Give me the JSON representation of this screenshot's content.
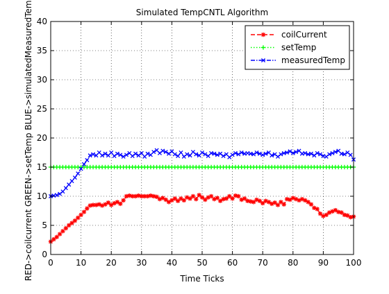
{
  "chart_data": {
    "type": "line",
    "title": "Simulated TempCNTL Algorithm",
    "xlabel": "Time Ticks",
    "ylabel": "RED->coilcurrent  GREEN->setTemp  BLUE->simulatedMeasuredTemp",
    "xlim": [
      0,
      100
    ],
    "ylim": [
      0,
      40
    ],
    "xticks": [
      0,
      10,
      20,
      30,
      40,
      50,
      60,
      70,
      80,
      90,
      100
    ],
    "yticks": [
      0,
      5,
      10,
      15,
      20,
      25,
      30,
      35,
      40
    ],
    "grid": true,
    "legend_position": "top-right",
    "x": [
      0,
      1,
      2,
      3,
      4,
      5,
      6,
      7,
      8,
      9,
      10,
      11,
      12,
      13,
      14,
      15,
      16,
      17,
      18,
      19,
      20,
      21,
      22,
      23,
      24,
      25,
      26,
      27,
      28,
      29,
      30,
      31,
      32,
      33,
      34,
      35,
      36,
      37,
      38,
      39,
      40,
      41,
      42,
      43,
      44,
      45,
      46,
      47,
      48,
      49,
      50,
      51,
      52,
      53,
      54,
      55,
      56,
      57,
      58,
      59,
      60,
      61,
      62,
      63,
      64,
      65,
      66,
      67,
      68,
      69,
      70,
      71,
      72,
      73,
      74,
      75,
      76,
      77,
      78,
      79,
      80,
      81,
      82,
      83,
      84,
      85,
      86,
      87,
      88,
      89,
      90,
      91,
      92,
      93,
      94,
      95,
      96,
      97,
      98,
      99,
      100
    ],
    "series": [
      {
        "name": "coilCurrent",
        "color": "#ff0000",
        "line_style": "dashed",
        "marker": "star",
        "values": [
          2.2,
          2.6,
          3.0,
          3.5,
          4.0,
          4.5,
          5.0,
          5.4,
          5.8,
          6.3,
          6.8,
          7.3,
          7.9,
          8.4,
          8.5,
          8.5,
          8.6,
          8.4,
          8.6,
          8.9,
          8.5,
          8.8,
          9.0,
          8.7,
          9.3,
          10.0,
          10.1,
          10.0,
          10.0,
          10.1,
          10.0,
          10.0,
          10.0,
          10.1,
          10.0,
          9.9,
          9.5,
          9.7,
          9.4,
          9.0,
          9.3,
          9.6,
          9.2,
          9.6,
          9.3,
          9.8,
          9.6,
          10.0,
          9.5,
          10.2,
          9.8,
          9.4,
          9.8,
          10.0,
          9.5,
          9.7,
          9.2,
          9.5,
          9.6,
          10.0,
          9.6,
          10.1,
          10.0,
          9.4,
          9.6,
          9.2,
          9.1,
          9.0,
          9.4,
          9.2,
          8.8,
          9.2,
          9.0,
          8.7,
          8.9,
          8.5,
          9.0,
          8.6,
          9.5,
          9.4,
          9.7,
          9.5,
          9.3,
          9.5,
          9.3,
          9.0,
          8.6,
          8.0,
          7.8,
          7.0,
          6.6,
          6.8,
          7.2,
          7.4,
          7.6,
          7.3,
          7.2,
          6.8,
          6.7,
          6.4,
          6.5
        ]
      },
      {
        "name": "setTemp",
        "color": "#00ff00",
        "line_style": "dotted",
        "marker": "plus",
        "values": [
          15,
          15,
          15,
          15,
          15,
          15,
          15,
          15,
          15,
          15,
          15,
          15,
          15,
          15,
          15,
          15,
          15,
          15,
          15,
          15,
          15,
          15,
          15,
          15,
          15,
          15,
          15,
          15,
          15,
          15,
          15,
          15,
          15,
          15,
          15,
          15,
          15,
          15,
          15,
          15,
          15,
          15,
          15,
          15,
          15,
          15,
          15,
          15,
          15,
          15,
          15,
          15,
          15,
          15,
          15,
          15,
          15,
          15,
          15,
          15,
          15,
          15,
          15,
          15,
          15,
          15,
          15,
          15,
          15,
          15,
          15,
          15,
          15,
          15,
          15,
          15,
          15,
          15,
          15,
          15,
          15,
          15,
          15,
          15,
          15,
          15,
          15,
          15,
          15,
          15,
          15,
          15,
          15,
          15,
          15,
          15,
          15,
          15,
          15,
          15,
          15
        ]
      },
      {
        "name": "measuredTemp",
        "color": "#0000ff",
        "line_style": "dashdot",
        "marker": "x",
        "values": [
          10.0,
          10.1,
          10.2,
          10.4,
          10.8,
          11.4,
          12.0,
          12.6,
          13.2,
          13.9,
          14.7,
          15.5,
          16.2,
          17.0,
          17.2,
          17.0,
          17.5,
          17.0,
          17.3,
          17.0,
          17.5,
          16.9,
          17.3,
          17.1,
          16.8,
          17.1,
          17.4,
          16.9,
          17.3,
          17.0,
          17.4,
          16.8,
          17.3,
          17.1,
          17.6,
          17.9,
          17.4,
          17.8,
          17.6,
          17.3,
          17.7,
          17.2,
          16.9,
          17.5,
          16.8,
          17.2,
          17.0,
          17.6,
          17.2,
          17.0,
          17.5,
          17.2,
          16.9,
          17.4,
          17.3,
          17.1,
          17.3,
          16.9,
          17.2,
          16.7,
          17.1,
          17.4,
          17.2,
          17.5,
          17.3,
          17.4,
          17.3,
          17.2,
          17.5,
          17.3,
          17.1,
          17.3,
          17.5,
          17.0,
          17.2,
          16.8,
          17.2,
          17.4,
          17.5,
          17.7,
          17.4,
          17.6,
          17.8,
          17.3,
          17.4,
          17.2,
          17.3,
          17.0,
          17.4,
          17.2,
          16.9,
          16.8,
          17.2,
          17.4,
          17.6,
          17.8,
          17.3,
          17.2,
          17.5,
          17.1,
          16.3
        ]
      }
    ]
  }
}
